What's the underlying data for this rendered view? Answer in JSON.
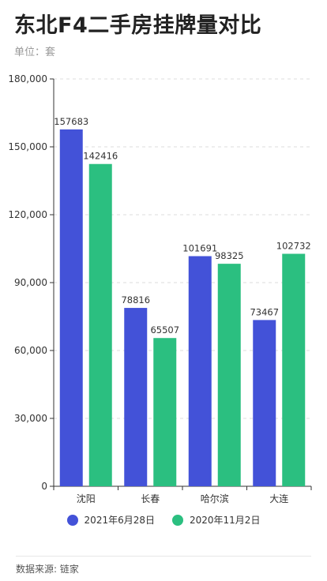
{
  "title": "东北F4二手房挂牌量对比",
  "subtitle": "单位：套",
  "source": "数据来源: 链家",
  "colors": {
    "series1": "#4352d8",
    "series2": "#2bbf80",
    "grid": "#dddddd",
    "axis": "#333333"
  },
  "legend": [
    {
      "label": "2021年6月28日",
      "color": "#4352d8"
    },
    {
      "label": "2020年11月2日",
      "color": "#2bbf80"
    }
  ],
  "chart_data": {
    "type": "bar",
    "categories": [
      "沈阳",
      "长春",
      "哈尔滨",
      "大连"
    ],
    "series": [
      {
        "name": "2021年6月28日",
        "values": [
          157683,
          78816,
          101691,
          73467
        ]
      },
      {
        "name": "2020年11月2日",
        "values": [
          142416,
          65507,
          98325,
          102732
        ]
      }
    ],
    "ylim": [
      0,
      180000
    ],
    "yticks": [
      0,
      30000,
      60000,
      90000,
      120000,
      150000,
      180000
    ],
    "ytick_labels": [
      "0",
      "30,000",
      "60,000",
      "90,000",
      "120,000",
      "150,000",
      "180,000"
    ],
    "grid": true,
    "legend_position": "bottom"
  }
}
